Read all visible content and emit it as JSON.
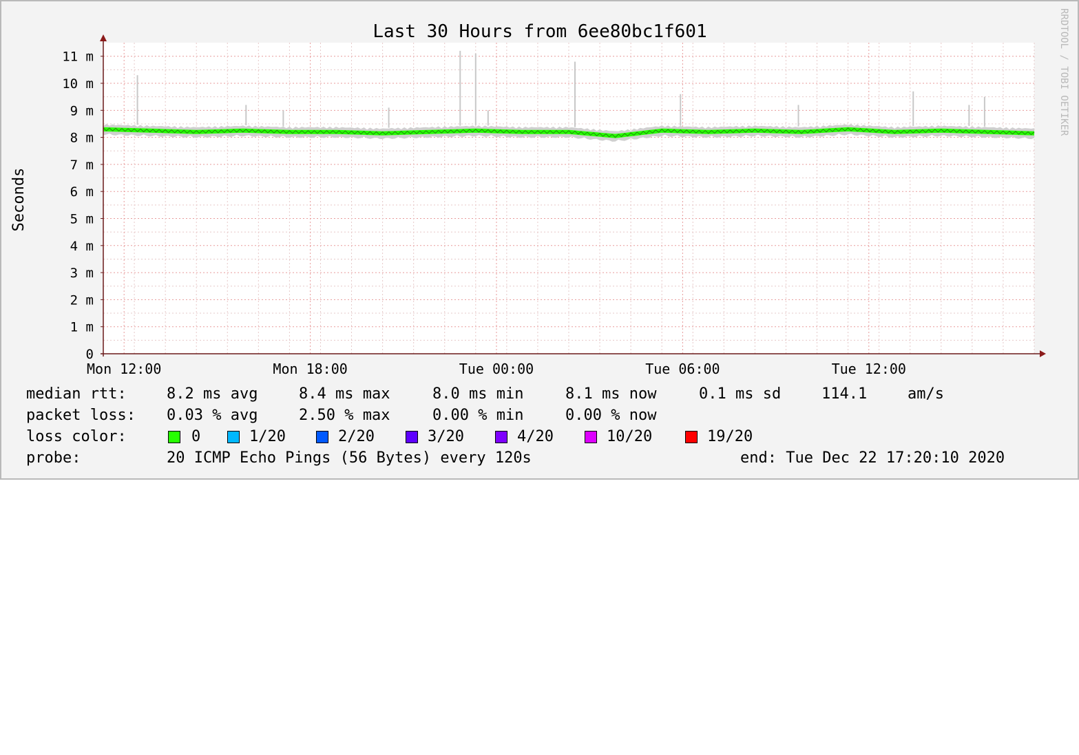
{
  "chart_data": {
    "type": "line",
    "title": "Last 30 Hours from 6ee80bc1f601",
    "ylabel": "Seconds",
    "watermark": "RRDTOOL / TOBI OETIKER",
    "y_ticks": [
      "0",
      "1 m",
      "2 m",
      "3 m",
      "4 m",
      "5 m",
      "6 m",
      "7 m",
      "8 m",
      "9 m",
      "10 m",
      "11 m"
    ],
    "x_ticks": [
      "Mon 12:00",
      "Mon 18:00",
      "Tue 00:00",
      "Tue 06:00",
      "Tue 12:00"
    ],
    "x_range_hours": [
      -30,
      0
    ],
    "ylim_ms": [
      0,
      11.4
    ],
    "grid": true,
    "x_hours_from_end": [
      -30,
      -28.5,
      -27,
      -25.5,
      -24,
      -22.5,
      -21,
      -19.5,
      -18,
      -16.5,
      -15,
      -13.5,
      -12,
      -10.5,
      -9,
      -7.5,
      -6,
      -4.5,
      -3,
      -1.5,
      0
    ],
    "median_rtt_ms": [
      8.3,
      8.25,
      8.2,
      8.25,
      8.2,
      8.2,
      8.15,
      8.2,
      8.25,
      8.2,
      8.2,
      8.05,
      8.25,
      8.2,
      8.25,
      8.2,
      8.3,
      8.2,
      8.25,
      8.2,
      8.15
    ],
    "spikes": [
      {
        "x_hours_from_end": -28.9,
        "y_ms": 10.3
      },
      {
        "x_hours_from_end": -25.4,
        "y_ms": 9.2
      },
      {
        "x_hours_from_end": -24.2,
        "y_ms": 9.0
      },
      {
        "x_hours_from_end": -20.8,
        "y_ms": 9.1
      },
      {
        "x_hours_from_end": -18.5,
        "y_ms": 11.2
      },
      {
        "x_hours_from_end": -18.0,
        "y_ms": 11.1
      },
      {
        "x_hours_from_end": -17.6,
        "y_ms": 9.0
      },
      {
        "x_hours_from_end": -14.8,
        "y_ms": 10.8
      },
      {
        "x_hours_from_end": -11.4,
        "y_ms": 9.6
      },
      {
        "x_hours_from_end": -7.6,
        "y_ms": 9.2
      },
      {
        "x_hours_from_end": -3.9,
        "y_ms": 9.7
      },
      {
        "x_hours_from_end": -2.1,
        "y_ms": 9.2
      },
      {
        "x_hours_from_end": -1.6,
        "y_ms": 9.5
      }
    ]
  },
  "legend": {
    "median_rtt": {
      "label": "median rtt:",
      "avg": "8.2 ms avg",
      "max": "8.4 ms max",
      "min": "8.0 ms min",
      "now": "8.1 ms now",
      "sd": "0.1 ms sd",
      "ams": "114.1",
      "ams_unit": "am/s"
    },
    "packet_loss": {
      "label": "packet loss:",
      "avg": "0.03 % avg",
      "max": "2.50 % max",
      "min": "0.00 % min",
      "now": "0.00 % now"
    },
    "loss_color": {
      "label": "loss color:",
      "items": [
        {
          "label": "0",
          "color": "#26ff00"
        },
        {
          "label": "1/20",
          "color": "#00b8ff"
        },
        {
          "label": "2/20",
          "color": "#0059ff"
        },
        {
          "label": "3/20",
          "color": "#5e00ff"
        },
        {
          "label": "4/20",
          "color": "#7e00ff"
        },
        {
          "label": "10/20",
          "color": "#dd00ff"
        },
        {
          "label": "19/20",
          "color": "#ff0000"
        }
      ]
    },
    "probe": {
      "label": "probe:",
      "value": "20 ICMP Echo Pings (56 Bytes) every 120s",
      "end": "end: Tue Dec 22 17:20:10 2020"
    }
  }
}
